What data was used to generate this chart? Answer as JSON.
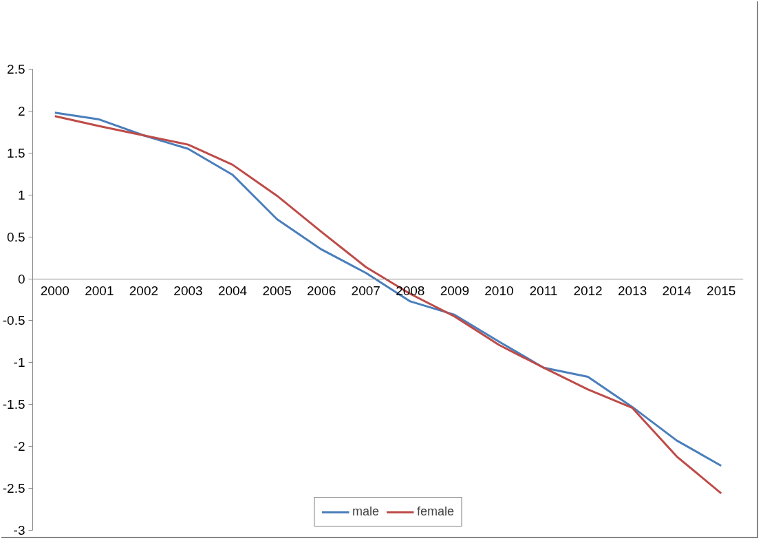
{
  "chart_data": {
    "type": "line",
    "categories": [
      "2000",
      "2001",
      "2002",
      "2003",
      "2004",
      "2005",
      "2006",
      "2007",
      "2008",
      "2009",
      "2010",
      "2011",
      "2012",
      "2013",
      "2014",
      "2015"
    ],
    "series": [
      {
        "name": "male",
        "color": "#4a7ebb",
        "values": [
          1.98,
          1.9,
          1.71,
          1.55,
          1.24,
          0.71,
          0.35,
          0.07,
          -0.27,
          -0.43,
          -0.75,
          -1.06,
          -1.17,
          -1.53,
          -1.93,
          -2.23
        ]
      },
      {
        "name": "female",
        "color": "#be4b48",
        "values": [
          1.94,
          1.82,
          1.71,
          1.6,
          1.36,
          0.99,
          0.56,
          0.14,
          -0.18,
          -0.45,
          -0.79,
          -1.06,
          -1.32,
          -1.54,
          -2.12,
          -2.56
        ]
      }
    ],
    "ylim": [
      -3,
      2.5
    ],
    "yticks": [
      -3,
      -2.5,
      -2,
      -1.5,
      -1,
      -0.5,
      0,
      0.5,
      1,
      1.5,
      2,
      2.5
    ],
    "grid": false,
    "legend": "bottom",
    "marker": "none",
    "line_style": "solid"
  }
}
